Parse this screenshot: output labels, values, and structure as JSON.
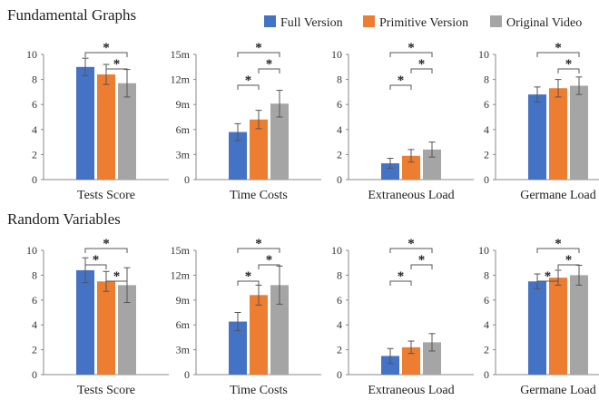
{
  "legend": [
    {
      "label": "Full Version",
      "color": "#4472C4"
    },
    {
      "label": "Primitive Version",
      "color": "#ED7D31"
    },
    {
      "label": "Original Video",
      "color": "#A5A5A5"
    }
  ],
  "sections": [
    {
      "title": "Fundamental Graphs"
    },
    {
      "title": "Random Variables"
    }
  ],
  "chart_data": [
    {
      "type": "bar",
      "section": "Fundamental Graphs",
      "xlabel": "Tests Score",
      "ylim": [
        0,
        10
      ],
      "yticks": [
        "0",
        "2",
        "4",
        "6",
        "8",
        "10"
      ],
      "series": [
        {
          "name": "Full Version",
          "value": 9.0,
          "error": 0.7
        },
        {
          "name": "Primitive Version",
          "value": 8.4,
          "error": 0.8
        },
        {
          "name": "Original Video",
          "value": 7.7,
          "error": 1.1
        }
      ],
      "significance": [
        {
          "from": 0,
          "to": 2,
          "label": "*",
          "level": 0
        },
        {
          "from": 1,
          "to": 2,
          "label": "*",
          "level": 1
        }
      ]
    },
    {
      "type": "bar",
      "section": "Fundamental Graphs",
      "xlabel": "Time Costs",
      "ylim": [
        0,
        15
      ],
      "yticks": [
        "0",
        "3m",
        "6m",
        "9m",
        "12m",
        "15m"
      ],
      "series": [
        {
          "name": "Full Version",
          "value": 5.7,
          "error": 1.0
        },
        {
          "name": "Primitive Version",
          "value": 7.2,
          "error": 1.1
        },
        {
          "name": "Original Video",
          "value": 9.1,
          "error": 1.6
        }
      ],
      "significance": [
        {
          "from": 0,
          "to": 2,
          "label": "*",
          "level": 0
        },
        {
          "from": 1,
          "to": 2,
          "label": "*",
          "level": 1
        },
        {
          "from": 0,
          "to": 1,
          "label": "*",
          "level": 2
        }
      ]
    },
    {
      "type": "bar",
      "section": "Fundamental Graphs",
      "xlabel": "Extraneous Load",
      "ylim": [
        0,
        10
      ],
      "yticks": [
        "0",
        "2",
        "4",
        "6",
        "8",
        "10"
      ],
      "series": [
        {
          "name": "Full Version",
          "value": 1.3,
          "error": 0.4
        },
        {
          "name": "Primitive Version",
          "value": 1.9,
          "error": 0.5
        },
        {
          "name": "Original Video",
          "value": 2.4,
          "error": 0.6
        }
      ],
      "significance": [
        {
          "from": 0,
          "to": 2,
          "label": "*",
          "level": 0
        },
        {
          "from": 1,
          "to": 2,
          "label": "*",
          "level": 1
        },
        {
          "from": 0,
          "to": 1,
          "label": "*",
          "level": 2
        }
      ]
    },
    {
      "type": "bar",
      "section": "Fundamental Graphs",
      "xlabel": "Germane Load",
      "ylim": [
        0,
        10
      ],
      "yticks": [
        "0",
        "2",
        "4",
        "6",
        "8",
        "10"
      ],
      "series": [
        {
          "name": "Full Version",
          "value": 6.8,
          "error": 0.6
        },
        {
          "name": "Primitive Version",
          "value": 7.3,
          "error": 0.7
        },
        {
          "name": "Original Video",
          "value": 7.5,
          "error": 0.7
        }
      ],
      "significance": [
        {
          "from": 0,
          "to": 2,
          "label": "*",
          "level": 0
        },
        {
          "from": 1,
          "to": 2,
          "label": "*",
          "level": 1
        }
      ]
    },
    {
      "type": "bar",
      "section": "Random Variables",
      "xlabel": "Tests Score",
      "ylim": [
        0,
        10
      ],
      "yticks": [
        "0",
        "2",
        "4",
        "6",
        "8",
        "10"
      ],
      "series": [
        {
          "name": "Full Version",
          "value": 8.4,
          "error": 1.0
        },
        {
          "name": "Primitive Version",
          "value": 7.5,
          "error": 0.8
        },
        {
          "name": "Original Video",
          "value": 7.2,
          "error": 1.4
        }
      ],
      "significance": [
        {
          "from": 0,
          "to": 2,
          "label": "*",
          "level": 0
        },
        {
          "from": 0,
          "to": 1,
          "label": "*",
          "level": 1
        },
        {
          "from": 1,
          "to": 2,
          "label": "*",
          "level": 2
        }
      ]
    },
    {
      "type": "bar",
      "section": "Random Variables",
      "xlabel": "Time Costs",
      "ylim": [
        0,
        15
      ],
      "yticks": [
        "0",
        "3m",
        "6m",
        "9m",
        "12m",
        "15m"
      ],
      "series": [
        {
          "name": "Full Version",
          "value": 6.4,
          "error": 1.1
        },
        {
          "name": "Primitive Version",
          "value": 9.6,
          "error": 1.2
        },
        {
          "name": "Original Video",
          "value": 10.8,
          "error": 2.3
        }
      ],
      "significance": [
        {
          "from": 0,
          "to": 2,
          "label": "*",
          "level": 0
        },
        {
          "from": 1,
          "to": 2,
          "label": "*",
          "level": 1
        },
        {
          "from": 0,
          "to": 1,
          "label": "*",
          "level": 2
        }
      ]
    },
    {
      "type": "bar",
      "section": "Random Variables",
      "xlabel": "Extraneous Load",
      "ylim": [
        0,
        10
      ],
      "yticks": [
        "0",
        "2",
        "4",
        "6",
        "8",
        "10"
      ],
      "series": [
        {
          "name": "Full Version",
          "value": 1.5,
          "error": 0.6
        },
        {
          "name": "Primitive Version",
          "value": 2.2,
          "error": 0.5
        },
        {
          "name": "Original Video",
          "value": 2.6,
          "error": 0.7
        }
      ],
      "significance": [
        {
          "from": 0,
          "to": 2,
          "label": "*",
          "level": 0
        },
        {
          "from": 1,
          "to": 2,
          "label": "*",
          "level": 1
        },
        {
          "from": 0,
          "to": 1,
          "label": "*",
          "level": 2
        }
      ]
    },
    {
      "type": "bar",
      "section": "Random Variables",
      "xlabel": "Germane Load",
      "ylim": [
        0,
        10
      ],
      "yticks": [
        "0",
        "2",
        "4",
        "6",
        "8",
        "10"
      ],
      "series": [
        {
          "name": "Full Version",
          "value": 7.5,
          "error": 0.6
        },
        {
          "name": "Primitive Version",
          "value": 7.8,
          "error": 0.6
        },
        {
          "name": "Original Video",
          "value": 8.0,
          "error": 0.8
        }
      ],
      "significance": [
        {
          "from": 0,
          "to": 2,
          "label": "*",
          "level": 0
        },
        {
          "from": 1,
          "to": 2,
          "label": "*",
          "level": 1
        },
        {
          "from": 0,
          "to": 1,
          "label": "*",
          "level": 2
        }
      ]
    }
  ]
}
